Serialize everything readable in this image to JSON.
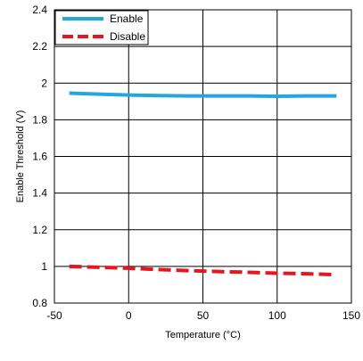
{
  "chart_data": {
    "type": "line",
    "title": "",
    "xlabel": "Temperature (°C)",
    "ylabel": "Enable Threshold (V)",
    "xlim": [
      -50,
      150
    ],
    "ylim": [
      0.8,
      2.4
    ],
    "xticks": [
      -50,
      0,
      50,
      100,
      150
    ],
    "yticks": [
      0.8,
      1,
      1.2,
      1.4,
      1.6,
      1.8,
      2,
      2.2,
      2.4
    ],
    "xtick_labels": [
      "-50",
      "0",
      "50",
      "100",
      "150"
    ],
    "ytick_labels": [
      "0.8",
      "1",
      "1.2",
      "1.4",
      "1.6",
      "1.8",
      "2",
      "2.2",
      "2.4"
    ],
    "grid": true,
    "legend_position": "top-left",
    "series": [
      {
        "name": "Enable",
        "color": "#22a8dc",
        "style": "solid",
        "x": [
          -40,
          -20,
          0,
          20,
          40,
          60,
          80,
          100,
          120,
          140
        ],
        "y": [
          1.945,
          1.94,
          1.935,
          1.932,
          1.93,
          1.93,
          1.93,
          1.928,
          1.93,
          1.93
        ]
      },
      {
        "name": "Disable",
        "color": "#e8141e",
        "style": "dashed",
        "x": [
          -40,
          -20,
          0,
          20,
          40,
          60,
          80,
          100,
          120,
          140
        ],
        "y": [
          1.0,
          0.995,
          0.99,
          0.983,
          0.977,
          0.972,
          0.968,
          0.963,
          0.96,
          0.955
        ]
      }
    ]
  }
}
